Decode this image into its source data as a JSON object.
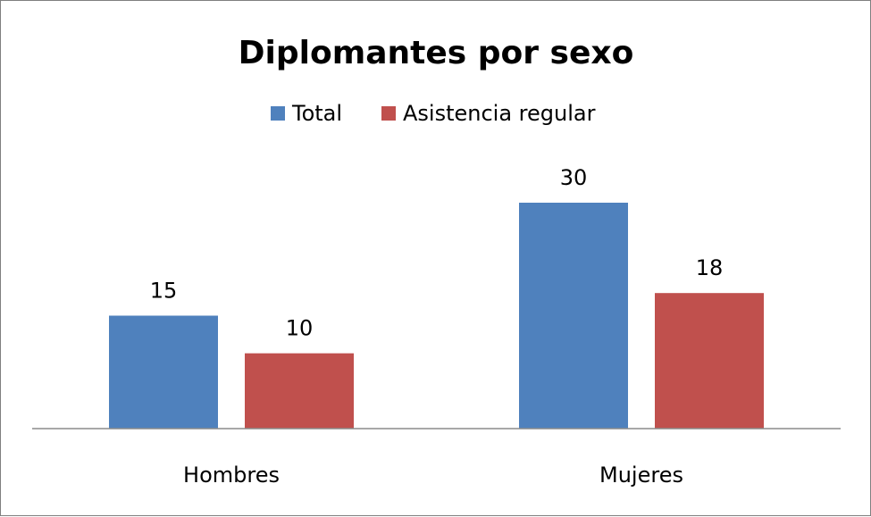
{
  "chart_data": {
    "type": "bar",
    "title": "Diplomantes por sexo",
    "categories": [
      "Hombres",
      "Mujeres"
    ],
    "series": [
      {
        "name": "Total",
        "values": [
          15,
          30
        ],
        "color": "#4f81bd"
      },
      {
        "name": "Asistencia regular",
        "values": [
          10,
          18
        ],
        "color": "#c0504d"
      }
    ],
    "ylim": [
      0,
      30
    ],
    "grid": false,
    "legend_position": "top",
    "data_labels": true
  }
}
